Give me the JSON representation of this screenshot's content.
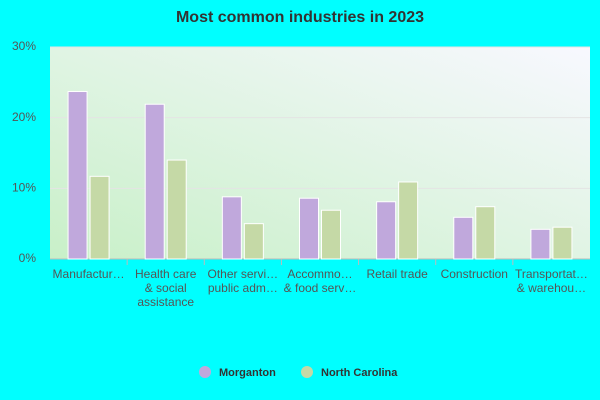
{
  "chart_data": {
    "type": "bar",
    "title": "Most common industries in 2023",
    "categories": [
      "Manufactur…",
      "Health care\n& social\nassistance",
      "Other servi…\npublic adm…",
      "Accommo…\n& food serv…",
      "Retail trade",
      "Construction",
      "Transportat…\n& warehou…"
    ],
    "series": [
      {
        "name": "Morganton",
        "color": "#c0a8dc",
        "values": [
          23.7,
          21.9,
          8.8,
          8.6,
          8.1,
          5.9,
          4.2
        ]
      },
      {
        "name": "North Carolina",
        "color": "#c5d9a6",
        "values": [
          11.7,
          14.0,
          5.0,
          6.9,
          10.9,
          7.4,
          4.5
        ]
      }
    ],
    "ylim": [
      0,
      30
    ],
    "yticks": [
      {
        "value": 0,
        "label": "0%"
      },
      {
        "value": 10,
        "label": "10%"
      },
      {
        "value": 20,
        "label": "20%"
      },
      {
        "value": 30,
        "label": "30%"
      }
    ],
    "grid": true
  }
}
